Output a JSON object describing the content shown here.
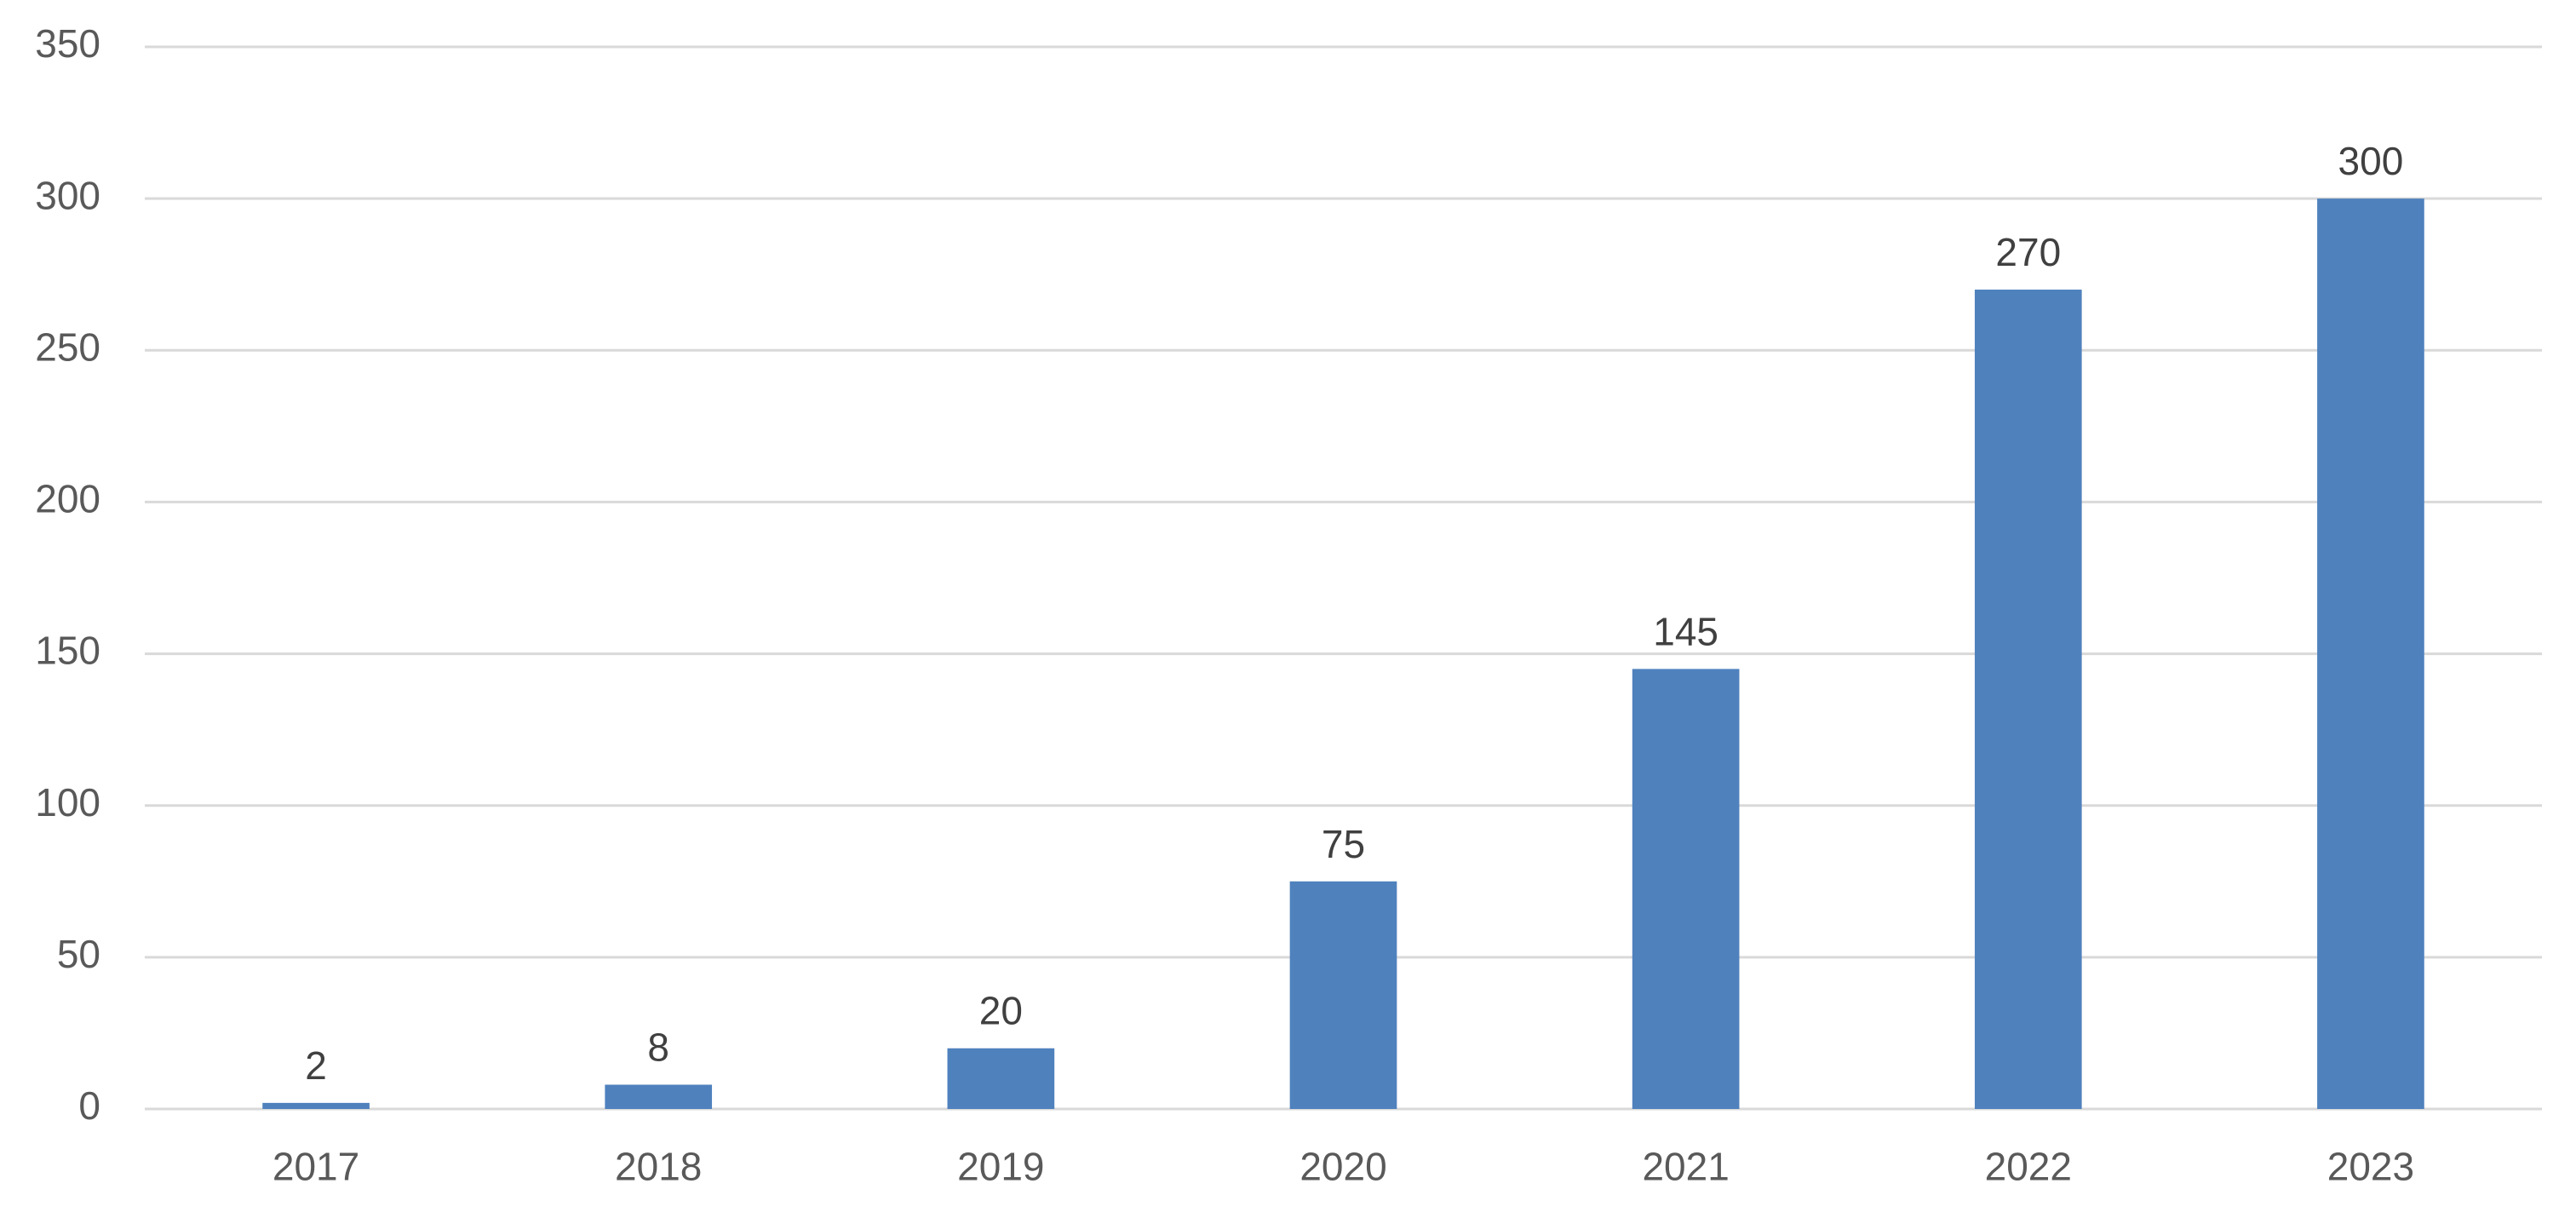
{
  "chart_data": {
    "type": "bar",
    "title": "",
    "xlabel": "",
    "ylabel": "",
    "categories": [
      "2017",
      "2018",
      "2019",
      "2020",
      "2021",
      "2022",
      "2023"
    ],
    "values": [
      2,
      8,
      20,
      75,
      145,
      270,
      300
    ],
    "data_labels": [
      "2",
      "8",
      "20",
      "75",
      "145",
      "270",
      "300"
    ],
    "ylim": [
      0,
      350
    ],
    "yticks": [
      0,
      50,
      100,
      150,
      200,
      250,
      300,
      350
    ],
    "ytick_labels": [
      "0",
      "50",
      "100",
      "150",
      "200",
      "250",
      "300",
      "350"
    ],
    "grid": true,
    "legend": "none",
    "bar_color": "#4f81bd"
  }
}
